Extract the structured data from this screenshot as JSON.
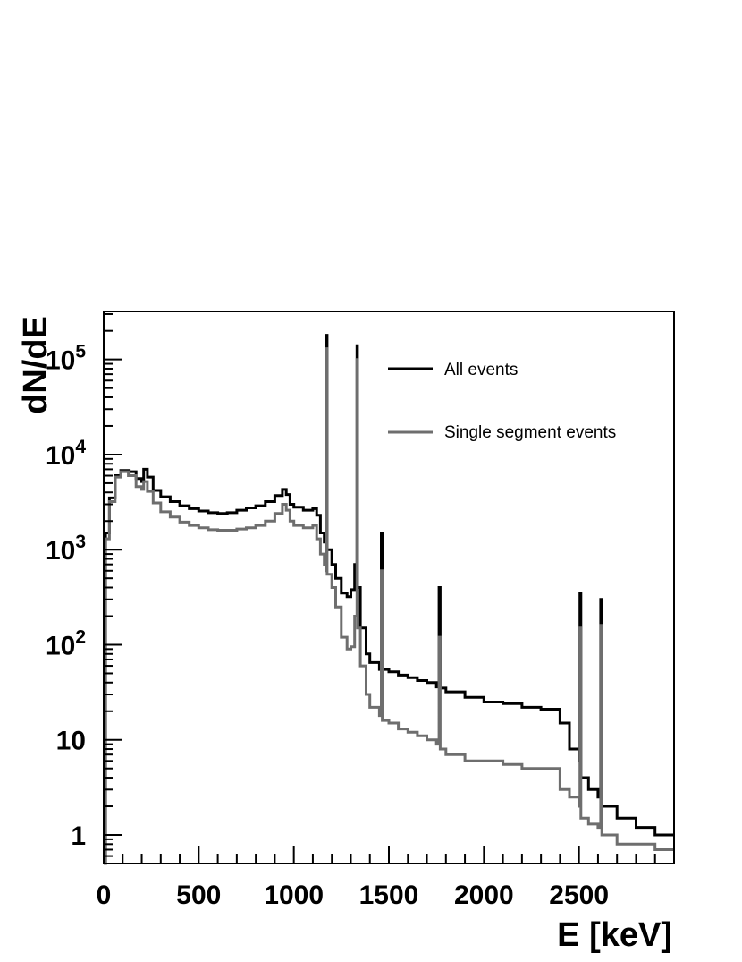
{
  "chart_data": {
    "type": "line",
    "xlabel": "E [keV]",
    "ylabel": "dN/dE",
    "xlim": [
      0,
      3000
    ],
    "ylim": [
      0.5,
      320000
    ],
    "y_scale": "log",
    "grid": false,
    "legend_position": "top-right",
    "x_ticks": [
      {
        "value": 0,
        "label": "0"
      },
      {
        "value": 500,
        "label": "500"
      },
      {
        "value": 1000,
        "label": "1000"
      },
      {
        "value": 1500,
        "label": "1500"
      },
      {
        "value": 2000,
        "label": "2000"
      },
      {
        "value": 2500,
        "label": "2500"
      }
    ],
    "y_ticks": [
      {
        "value": 1,
        "base": "1",
        "exp": ""
      },
      {
        "value": 10,
        "base": "10",
        "exp": ""
      },
      {
        "value": 100,
        "base": "10",
        "exp": "2"
      },
      {
        "value": 1000,
        "base": "10",
        "exp": "3"
      },
      {
        "value": 10000,
        "base": "10",
        "exp": "4"
      },
      {
        "value": 100000,
        "base": "10",
        "exp": "5"
      }
    ],
    "series": [
      {
        "name": "All events",
        "color": "#000000",
        "points": [
          [
            0,
            0.5
          ],
          [
            10,
            1500
          ],
          [
            30,
            3500
          ],
          [
            60,
            6000
          ],
          [
            90,
            6800
          ],
          [
            130,
            6600
          ],
          [
            170,
            5600
          ],
          [
            200,
            5200
          ],
          [
            210,
            7000
          ],
          [
            230,
            5800
          ],
          [
            260,
            4200
          ],
          [
            300,
            3600
          ],
          [
            350,
            3200
          ],
          [
            400,
            2900
          ],
          [
            450,
            2700
          ],
          [
            500,
            2550
          ],
          [
            550,
            2450
          ],
          [
            600,
            2400
          ],
          [
            650,
            2450
          ],
          [
            700,
            2600
          ],
          [
            750,
            2750
          ],
          [
            800,
            2900
          ],
          [
            850,
            3200
          ],
          [
            900,
            3700
          ],
          [
            940,
            4300
          ],
          [
            960,
            3800
          ],
          [
            980,
            3000
          ],
          [
            1000,
            2800
          ],
          [
            1050,
            2600
          ],
          [
            1100,
            2700
          ],
          [
            1120,
            2300
          ],
          [
            1140,
            1500
          ],
          [
            1160,
            1200
          ],
          [
            1172,
            1100
          ],
          [
            1173,
            180000
          ],
          [
            1175,
            1000
          ],
          [
            1200,
            700
          ],
          [
            1220,
            500
          ],
          [
            1250,
            350
          ],
          [
            1280,
            320
          ],
          [
            1300,
            380
          ],
          [
            1320,
            700
          ],
          [
            1332,
            140000
          ],
          [
            1335,
            400
          ],
          [
            1350,
            150
          ],
          [
            1380,
            80
          ],
          [
            1400,
            65
          ],
          [
            1450,
            55
          ],
          [
            1460,
            1500
          ],
          [
            1465,
            55
          ],
          [
            1500,
            52
          ],
          [
            1550,
            48
          ],
          [
            1600,
            45
          ],
          [
            1650,
            42
          ],
          [
            1700,
            40
          ],
          [
            1750,
            36
          ],
          [
            1764,
            400
          ],
          [
            1770,
            35
          ],
          [
            1800,
            32
          ],
          [
            1900,
            28
          ],
          [
            2000,
            25
          ],
          [
            2100,
            24
          ],
          [
            2200,
            22
          ],
          [
            2300,
            21
          ],
          [
            2400,
            15
          ],
          [
            2450,
            8
          ],
          [
            2500,
            6
          ],
          [
            2505,
            350
          ],
          [
            2510,
            4
          ],
          [
            2550,
            3
          ],
          [
            2600,
            2.5
          ],
          [
            2614,
            300
          ],
          [
            2620,
            2
          ],
          [
            2700,
            1.5
          ],
          [
            2800,
            1.2
          ],
          [
            2900,
            1
          ],
          [
            3000,
            1
          ]
        ]
      },
      {
        "name": "Single segment events",
        "color": "#6e6e6e",
        "points": [
          [
            0,
            0.5
          ],
          [
            10,
            1300
          ],
          [
            30,
            3200
          ],
          [
            60,
            5800
          ],
          [
            90,
            6600
          ],
          [
            130,
            6000
          ],
          [
            170,
            4600
          ],
          [
            200,
            4300
          ],
          [
            210,
            5200
          ],
          [
            230,
            4100
          ],
          [
            260,
            3100
          ],
          [
            300,
            2500
          ],
          [
            350,
            2200
          ],
          [
            400,
            1950
          ],
          [
            450,
            1800
          ],
          [
            500,
            1700
          ],
          [
            550,
            1620
          ],
          [
            600,
            1600
          ],
          [
            650,
            1600
          ],
          [
            700,
            1650
          ],
          [
            750,
            1700
          ],
          [
            800,
            1800
          ],
          [
            850,
            2000
          ],
          [
            900,
            2400
          ],
          [
            940,
            3000
          ],
          [
            960,
            2600
          ],
          [
            980,
            2000
          ],
          [
            1000,
            1800
          ],
          [
            1050,
            1700
          ],
          [
            1100,
            1800
          ],
          [
            1120,
            1300
          ],
          [
            1140,
            900
          ],
          [
            1160,
            700
          ],
          [
            1172,
            600
          ],
          [
            1173,
            130000
          ],
          [
            1175,
            550
          ],
          [
            1200,
            400
          ],
          [
            1220,
            250
          ],
          [
            1250,
            120
          ],
          [
            1280,
            90
          ],
          [
            1300,
            95
          ],
          [
            1320,
            200
          ],
          [
            1332,
            100000
          ],
          [
            1335,
            150
          ],
          [
            1350,
            60
          ],
          [
            1380,
            30
          ],
          [
            1400,
            22
          ],
          [
            1450,
            18
          ],
          [
            1460,
            600
          ],
          [
            1465,
            16
          ],
          [
            1500,
            15
          ],
          [
            1550,
            13
          ],
          [
            1600,
            12
          ],
          [
            1650,
            11
          ],
          [
            1700,
            10
          ],
          [
            1750,
            9
          ],
          [
            1764,
            120
          ],
          [
            1770,
            8
          ],
          [
            1800,
            7
          ],
          [
            1900,
            6
          ],
          [
            2000,
            6
          ],
          [
            2100,
            5.5
          ],
          [
            2200,
            5
          ],
          [
            2300,
            5
          ],
          [
            2400,
            3
          ],
          [
            2450,
            2.5
          ],
          [
            2500,
            2
          ],
          [
            2505,
            150
          ],
          [
            2510,
            1.5
          ],
          [
            2550,
            1.3
          ],
          [
            2600,
            1.2
          ],
          [
            2614,
            160
          ],
          [
            2620,
            1
          ],
          [
            2700,
            0.8
          ],
          [
            2800,
            0.8
          ],
          [
            2900,
            0.7
          ],
          [
            3000,
            0.7
          ]
        ]
      }
    ]
  }
}
